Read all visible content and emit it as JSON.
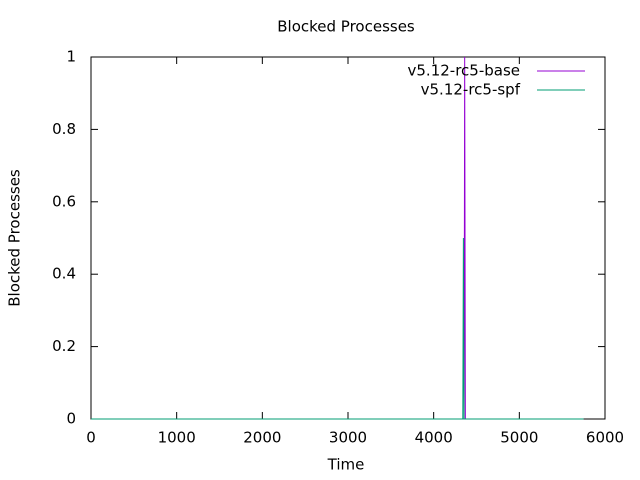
{
  "chart_data": {
    "type": "line",
    "title": "Blocked Processes",
    "x_label": "Time",
    "y_label": "Blocked Processes",
    "xlim": [
      0,
      6000
    ],
    "xticks": [
      0,
      1000,
      2000,
      3000,
      4000,
      5000,
      6000
    ],
    "ylim": [
      0,
      1
    ],
    "yticks": [
      0,
      0.2,
      0.4,
      0.6,
      0.8,
      1
    ],
    "legend": "top-right",
    "series": [
      {
        "name": "v5.12-rc5-base",
        "color": "#9400d3",
        "x": [
          0,
          4355,
          4362,
          4370,
          5750
        ],
        "values": [
          0,
          0,
          1,
          0,
          0
        ]
      },
      {
        "name": "v5.12-rc5-spf",
        "color": "#009e73",
        "x": [
          0,
          4340,
          4347,
          4354,
          5750
        ],
        "values": [
          0,
          0,
          0.5,
          0,
          0
        ]
      }
    ]
  }
}
